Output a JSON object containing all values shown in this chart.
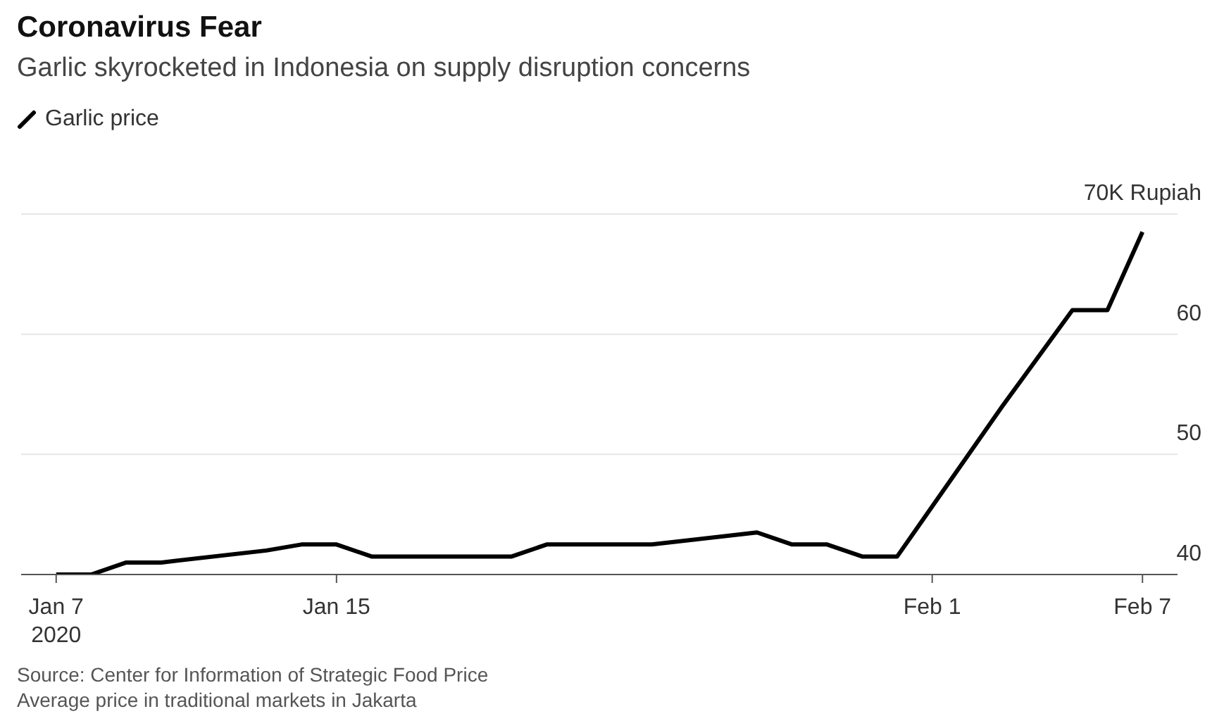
{
  "chart_data": {
    "type": "line",
    "title": "Coronavirus Fear",
    "subtitle": "Garlic skyrocketed in Indonesia on supply disruption concerns",
    "x": [
      "2020-01-07",
      "2020-01-08",
      "2020-01-09",
      "2020-01-10",
      "2020-01-13",
      "2020-01-14",
      "2020-01-15",
      "2020-01-16",
      "2020-01-20",
      "2020-01-21",
      "2020-01-24",
      "2020-01-27",
      "2020-01-28",
      "2020-01-29",
      "2020-01-30",
      "2020-01-31",
      "2020-02-03",
      "2020-02-04",
      "2020-02-05",
      "2020-02-06",
      "2020-02-07"
    ],
    "series": [
      {
        "name": "Garlic price",
        "color": "#000000",
        "values": [
          40,
          40,
          41,
          41,
          42,
          42.5,
          42.5,
          41.5,
          41.5,
          42.5,
          42.5,
          43.5,
          42.5,
          42.5,
          41.5,
          41.5,
          54,
          58,
          62,
          62,
          68.5
        ]
      }
    ],
    "xlim": [
      "2020-01-06",
      "2020-02-08"
    ],
    "xticks": [
      {
        "value": "2020-01-07",
        "label": "Jan 7\n2020"
      },
      {
        "value": "2020-01-15",
        "label": "Jan 15"
      },
      {
        "value": "2020-02-01",
        "label": "Feb 1"
      },
      {
        "value": "2020-02-07",
        "label": "Feb 7"
      }
    ],
    "ylim": [
      40,
      70
    ],
    "yticks": [
      40,
      50,
      60,
      {
        "value": 70,
        "label": "70K Rupiah"
      }
    ],
    "grid": "y",
    "legend": "top left",
    "line_style": "solid",
    "annotations": [
      "Source: Center for Information of Strategic Food Price",
      "Average price in traditional markets in Jakarta"
    ]
  }
}
